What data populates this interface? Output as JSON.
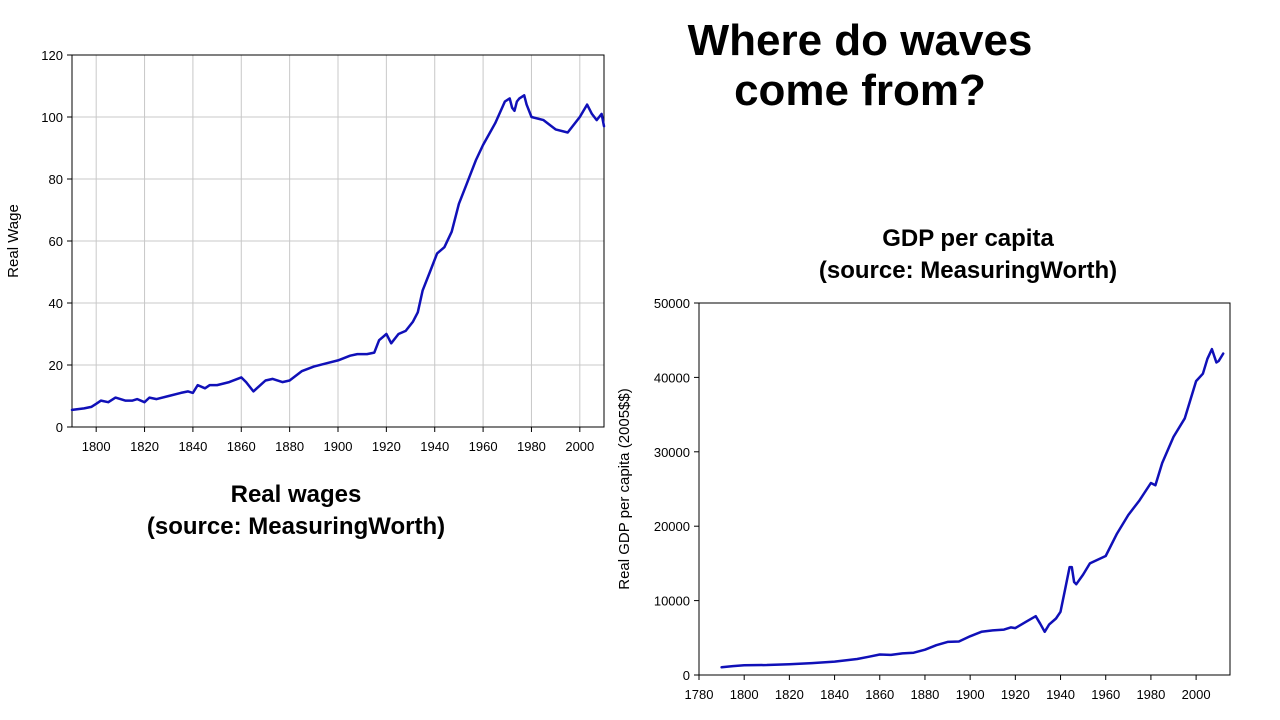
{
  "slide": {
    "title_line1": "Where do waves",
    "title_line2": "come from?"
  },
  "chart_data": [
    {
      "type": "line",
      "title_line1": "Real wages",
      "title_line2": "(source: MeasuringWorth)",
      "xlabel": "",
      "ylabel": "Real Wage",
      "xlim": [
        1790,
        2010
      ],
      "ylim": [
        0,
        120
      ],
      "xticks": [
        1800,
        1820,
        1840,
        1860,
        1880,
        1900,
        1920,
        1940,
        1960,
        1980,
        2000
      ],
      "yticks": [
        0,
        20,
        40,
        60,
        80,
        100,
        120
      ],
      "grid": true,
      "legend": "none",
      "line_color": "#1010b8",
      "series": [
        {
          "x": [
            1790,
            1795,
            1798,
            1800,
            1802,
            1805,
            1808,
            1810,
            1812,
            1815,
            1817,
            1820,
            1822,
            1825,
            1830,
            1835,
            1838,
            1840,
            1842,
            1845,
            1847,
            1850,
            1855,
            1860,
            1862,
            1865,
            1870,
            1873,
            1877,
            1880,
            1885,
            1890,
            1895,
            1900,
            1905,
            1908,
            1912,
            1915,
            1917,
            1920,
            1922,
            1925,
            1928,
            1931,
            1933,
            1935,
            1938,
            1941,
            1944,
            1947,
            1950,
            1953,
            1957,
            1960,
            1965,
            1969,
            1971,
            1972,
            1973,
            1974,
            1975,
            1977,
            1978,
            1980,
            1985,
            1990,
            1995,
            2000,
            2003,
            2005,
            2007,
            2009,
            2010
          ],
          "y": [
            5.5,
            6,
            6.5,
            7.5,
            8.5,
            8,
            9.5,
            9,
            8.5,
            8.5,
            9,
            8,
            9.5,
            9,
            10,
            11,
            11.5,
            11,
            13.5,
            12.5,
            13.5,
            13.5,
            14.5,
            16,
            14.5,
            11.5,
            15,
            15.5,
            14.5,
            15,
            18,
            19.5,
            20.5,
            21.5,
            23,
            23.5,
            23.5,
            24,
            28,
            30,
            27,
            30,
            31,
            34,
            37,
            44,
            50,
            56,
            58,
            63,
            72,
            78,
            86,
            91,
            98,
            105,
            106,
            103,
            102,
            105,
            106,
            107,
            104,
            100,
            99,
            96,
            95,
            100,
            104,
            101,
            99,
            101,
            97
          ]
        }
      ]
    },
    {
      "type": "line",
      "title_line1": "GDP per capita",
      "title_line2": "(source: MeasuringWorth)",
      "xlabel": "",
      "ylabel": "Real GDP per capita (2005$$)",
      "xlim": [
        1780,
        2015
      ],
      "ylim": [
        0,
        50000
      ],
      "xticks": [
        1780,
        1800,
        1820,
        1840,
        1860,
        1880,
        1900,
        1920,
        1940,
        1960,
        1980,
        2000
      ],
      "yticks": [
        0,
        10000,
        20000,
        30000,
        40000,
        50000
      ],
      "grid": false,
      "legend": "none",
      "line_color": "#1010b8",
      "series": [
        {
          "x": [
            1790,
            1795,
            1800,
            1810,
            1820,
            1830,
            1840,
            1850,
            1855,
            1860,
            1865,
            1870,
            1875,
            1880,
            1885,
            1890,
            1895,
            1900,
            1905,
            1910,
            1915,
            1918,
            1920,
            1925,
            1929,
            1931,
            1933,
            1935,
            1938,
            1940,
            1942,
            1944,
            1945,
            1946,
            1947,
            1950,
            1953,
            1955,
            1960,
            1965,
            1970,
            1975,
            1980,
            1982,
            1985,
            1990,
            1995,
            2000,
            2003,
            2005,
            2007,
            2009,
            2010,
            2012
          ],
          "y": [
            1050,
            1200,
            1300,
            1350,
            1450,
            1600,
            1800,
            2150,
            2450,
            2750,
            2700,
            2900,
            3000,
            3400,
            4000,
            4450,
            4500,
            5200,
            5800,
            6000,
            6100,
            6400,
            6300,
            7200,
            7900,
            6900,
            5800,
            6800,
            7600,
            8500,
            11500,
            14500,
            14500,
            12500,
            12200,
            13500,
            15000,
            15300,
            16000,
            19000,
            21500,
            23500,
            25800,
            25500,
            28500,
            32000,
            34500,
            39500,
            40500,
            42500,
            43800,
            42000,
            42200,
            43200
          ]
        }
      ]
    }
  ]
}
